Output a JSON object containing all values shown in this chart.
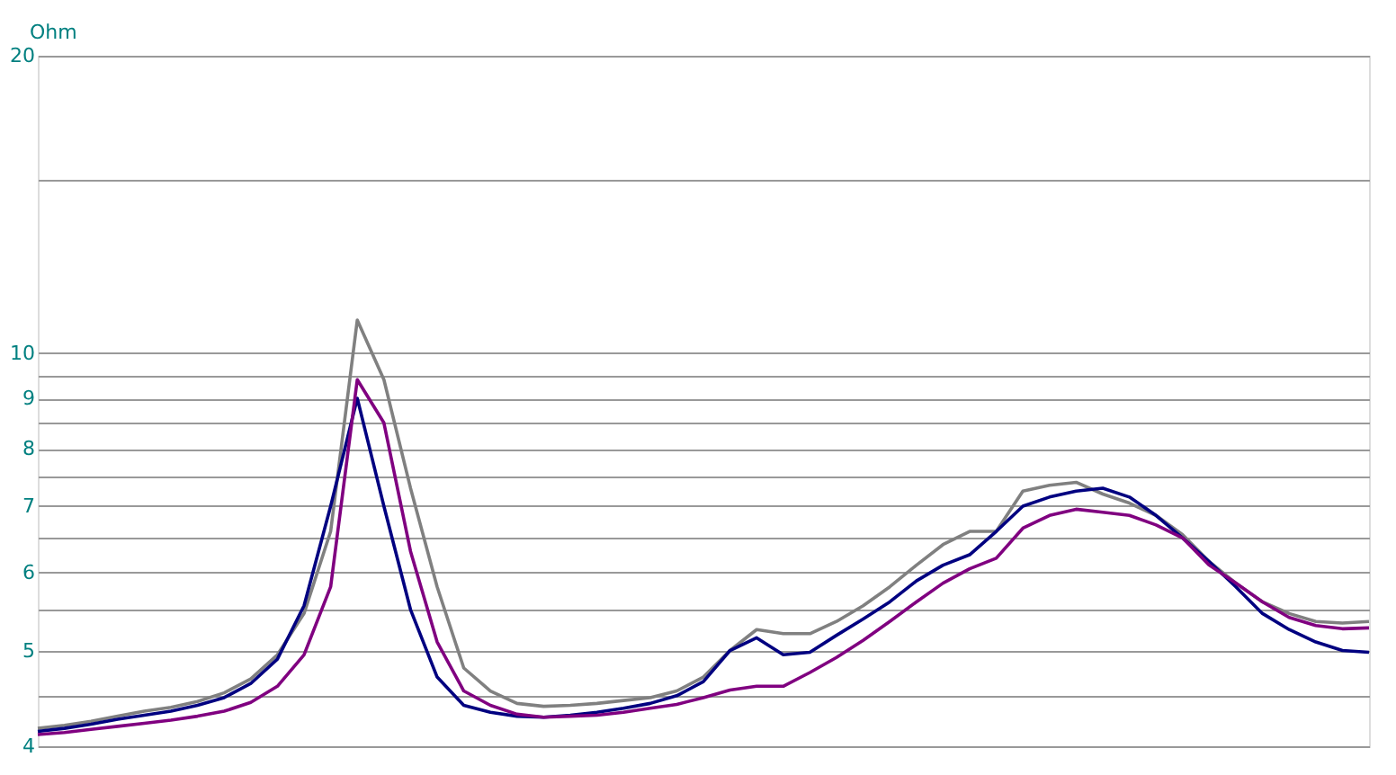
{
  "chart_data": {
    "type": "line",
    "ylabel": "Ohm",
    "log": "y",
    "ylim": [
      4,
      20
    ],
    "grid": "y",
    "legend": false,
    "tick_labels": "y",
    "line_style": "solid",
    "marker": "none",
    "yticks": [
      4,
      {
        "value": 4.5,
        "label": null
      },
      5,
      {
        "value": 5.5,
        "label": null
      },
      6,
      {
        "value": 6.5,
        "label": null
      },
      7,
      {
        "value": 7.5,
        "label": null
      },
      8,
      {
        "value": 8.5,
        "label": null
      },
      9,
      {
        "value": 9.5,
        "label": null
      },
      10,
      {
        "value": 15,
        "label": null
      },
      20
    ],
    "categories": [
      null,
      null,
      null,
      null,
      null,
      null,
      null,
      null,
      null,
      null,
      null,
      null,
      null,
      null,
      null,
      null,
      null,
      null,
      null,
      null,
      null,
      null,
      null,
      null,
      null,
      null,
      null,
      null,
      null,
      null,
      null,
      null,
      null,
      null,
      null,
      null,
      null,
      null,
      null,
      null,
      null,
      null,
      null,
      null,
      null,
      null,
      null,
      null,
      null,
      null,
      null
    ],
    "series": [
      {
        "color": "#808080",
        "values": [
          4.17,
          4.2,
          4.24,
          4.29,
          4.34,
          4.38,
          4.44,
          4.53,
          4.68,
          4.95,
          5.45,
          6.6,
          10.8,
          9.4,
          7.3,
          5.8,
          4.8,
          4.55,
          4.42,
          4.39,
          4.4,
          4.42,
          4.45,
          4.48,
          4.55,
          4.7,
          5.0,
          5.25,
          5.2,
          5.2,
          5.35,
          5.55,
          5.8,
          6.1,
          6.4,
          6.6,
          6.6,
          7.25,
          7.35,
          7.4,
          7.2,
          7.05,
          6.85,
          6.55,
          6.15,
          5.85,
          5.6,
          5.45,
          5.35,
          5.33,
          5.35
        ]
      },
      {
        "color": "#000080",
        "values": [
          4.14,
          4.17,
          4.21,
          4.26,
          4.3,
          4.34,
          4.4,
          4.48,
          4.63,
          4.9,
          5.55,
          7.0,
          9.0,
          7.0,
          5.5,
          4.7,
          4.4,
          4.33,
          4.29,
          4.28,
          4.3,
          4.33,
          4.37,
          4.42,
          4.5,
          4.65,
          5.0,
          5.15,
          4.95,
          4.98,
          5.18,
          5.38,
          5.6,
          5.88,
          6.1,
          6.25,
          6.6,
          7.0,
          7.15,
          7.25,
          7.3,
          7.15,
          6.85,
          6.5,
          6.15,
          5.8,
          5.45,
          5.25,
          5.1,
          5.0,
          4.98
        ]
      },
      {
        "color": "#800080",
        "values": [
          4.11,
          4.13,
          4.16,
          4.19,
          4.22,
          4.25,
          4.29,
          4.34,
          4.43,
          4.6,
          4.95,
          5.8,
          9.4,
          8.5,
          6.3,
          5.1,
          4.55,
          4.4,
          4.31,
          4.28,
          4.29,
          4.3,
          4.33,
          4.37,
          4.41,
          4.48,
          4.56,
          4.6,
          4.6,
          4.75,
          4.92,
          5.12,
          5.35,
          5.6,
          5.85,
          6.05,
          6.2,
          6.65,
          6.85,
          6.95,
          6.9,
          6.85,
          6.7,
          6.5,
          6.1,
          5.85,
          5.6,
          5.4,
          5.3,
          5.26,
          5.27
        ]
      }
    ]
  }
}
